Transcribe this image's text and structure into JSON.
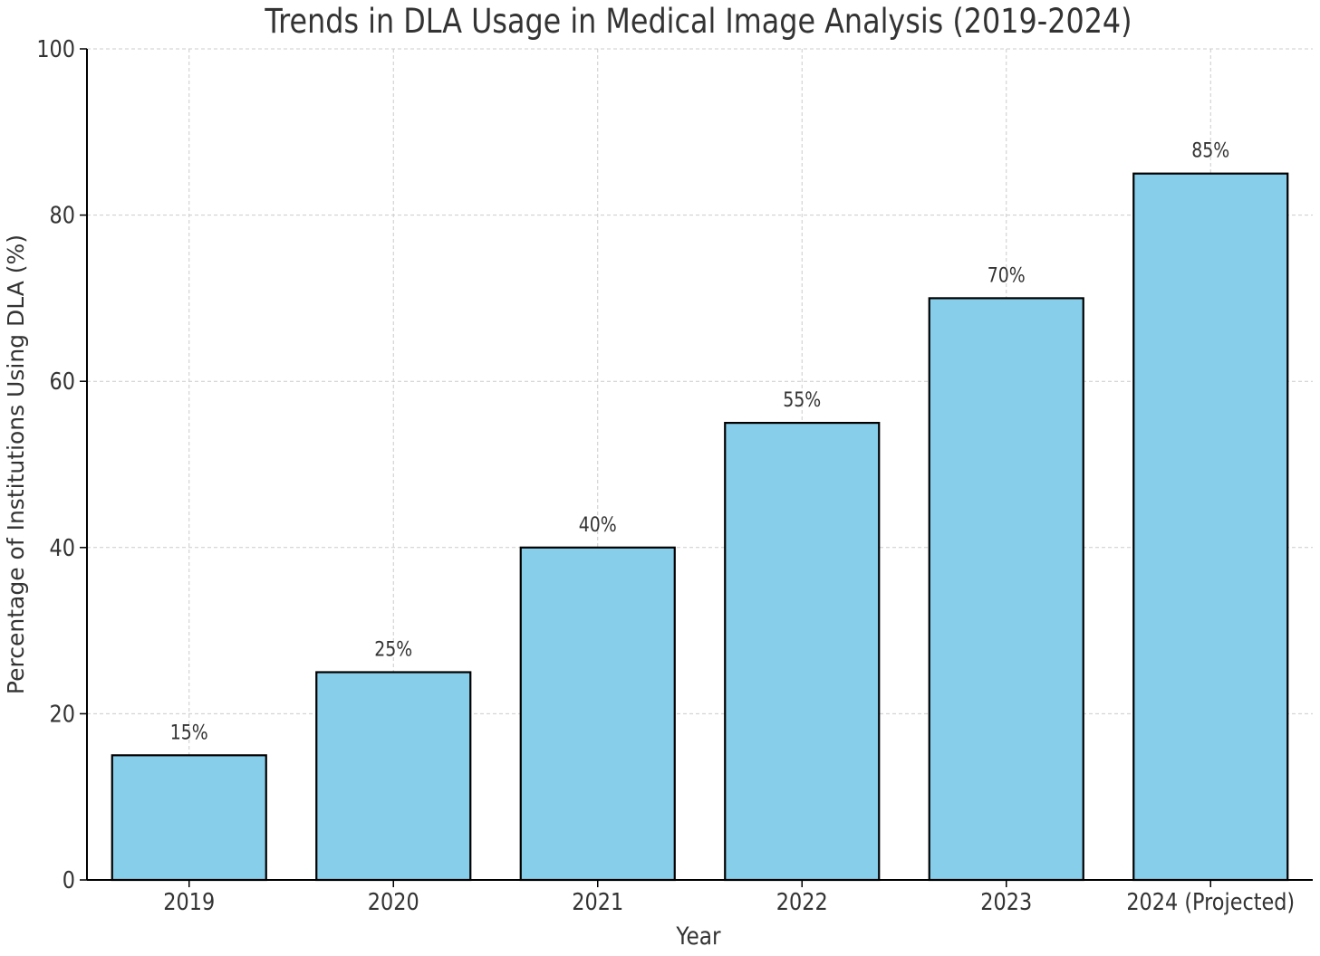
{
  "chart_data": {
    "type": "bar",
    "title": "Trends in DLA Usage in Medical Image Analysis (2019-2024)",
    "xlabel": "Year",
    "ylabel": "Percentage of Institutions Using DLA (%)",
    "categories": [
      "2019",
      "2020",
      "2021",
      "2022",
      "2023",
      "2024 (Projected)"
    ],
    "values": [
      15,
      25,
      40,
      55,
      70,
      85
    ],
    "data_labels": [
      "15%",
      "25%",
      "40%",
      "55%",
      "70%",
      "85%"
    ],
    "ylim": [
      0,
      100
    ],
    "yticks": [
      0,
      20,
      40,
      60,
      80,
      100
    ],
    "ytick_labels": [
      "0",
      "20",
      "40",
      "60",
      "80",
      "100"
    ],
    "grid": true,
    "bar_color": "#87ceeb",
    "bar_edge_color": "#000000",
    "grid_color": "#cccccc",
    "text_color": "#333333"
  }
}
